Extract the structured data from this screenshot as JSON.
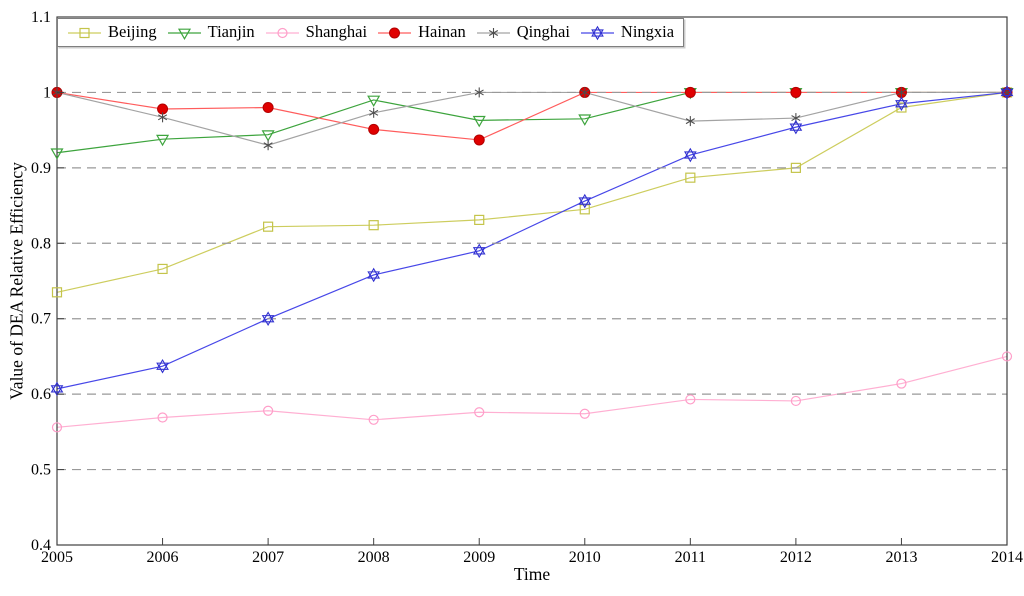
{
  "figure": {
    "xlabel": "Time",
    "ylabel": "Value of DEA Relative Efficiency"
  },
  "chart_data": {
    "type": "line",
    "title": "",
    "xlabel": "Time",
    "ylabel": "Value of DEA Relative Efficiency",
    "x": [
      2005,
      2006,
      2007,
      2008,
      2009,
      2010,
      2011,
      2012,
      2013,
      2014
    ],
    "xlim": [
      2005,
      2014
    ],
    "ylim": [
      0.4,
      1.1
    ],
    "yticks": [
      0.4,
      0.5,
      0.6,
      0.7,
      0.8,
      0.9,
      1.0,
      1.1
    ],
    "ytick_labels": [
      "0.4",
      "0.5",
      "0.6",
      "0.7",
      "0.8",
      "0.9",
      "1",
      "1.1"
    ],
    "grid_y": [
      0.5,
      0.6,
      0.7,
      0.8,
      0.9,
      1.0
    ],
    "grid_style": "dashed",
    "legend_position": "top-left-horizontal",
    "series": [
      {
        "name": "Beijing",
        "marker": "open-square",
        "color": "#cdcd5e",
        "marker_color": "#c4c44a",
        "values": [
          0.735,
          0.766,
          0.822,
          0.824,
          0.831,
          0.845,
          0.887,
          0.9,
          0.98,
          1.0
        ]
      },
      {
        "name": "Tianjin",
        "marker": "open-triangle-down",
        "color": "#3da43d",
        "marker_color": "#3da43d",
        "values": [
          0.92,
          0.938,
          0.944,
          0.99,
          0.963,
          0.965,
          1.0,
          1.0,
          1.0,
          1.0
        ]
      },
      {
        "name": "Shanghai",
        "marker": "open-circle",
        "color": "#ffafd2",
        "marker_color": "#ff9ec9",
        "values": [
          0.556,
          0.569,
          0.578,
          0.566,
          0.576,
          0.574,
          0.593,
          0.591,
          0.614,
          0.65
        ]
      },
      {
        "name": "Hainan",
        "marker": "filled-circle",
        "color": "#ff5c5c",
        "marker_color": "#e00000",
        "edge_color": "#b30000",
        "values": [
          1.0,
          0.978,
          0.98,
          0.951,
          0.937,
          1.0,
          1.0,
          1.0,
          1.0,
          1.0
        ]
      },
      {
        "name": "Qinghai",
        "marker": "asterisk",
        "color": "#a3a3a3",
        "marker_color": "#4d4d4d",
        "values": [
          1.0,
          0.967,
          0.93,
          0.973,
          1.0,
          1.0,
          0.962,
          0.966,
          1.0,
          1.0
        ]
      },
      {
        "name": "Ningxia",
        "marker": "open-hexagram",
        "color": "#4747e8",
        "marker_color": "#3030d0",
        "values": [
          0.607,
          0.637,
          0.7,
          0.758,
          0.79,
          0.856,
          0.917,
          0.954,
          0.985,
          1.0
        ]
      }
    ]
  }
}
